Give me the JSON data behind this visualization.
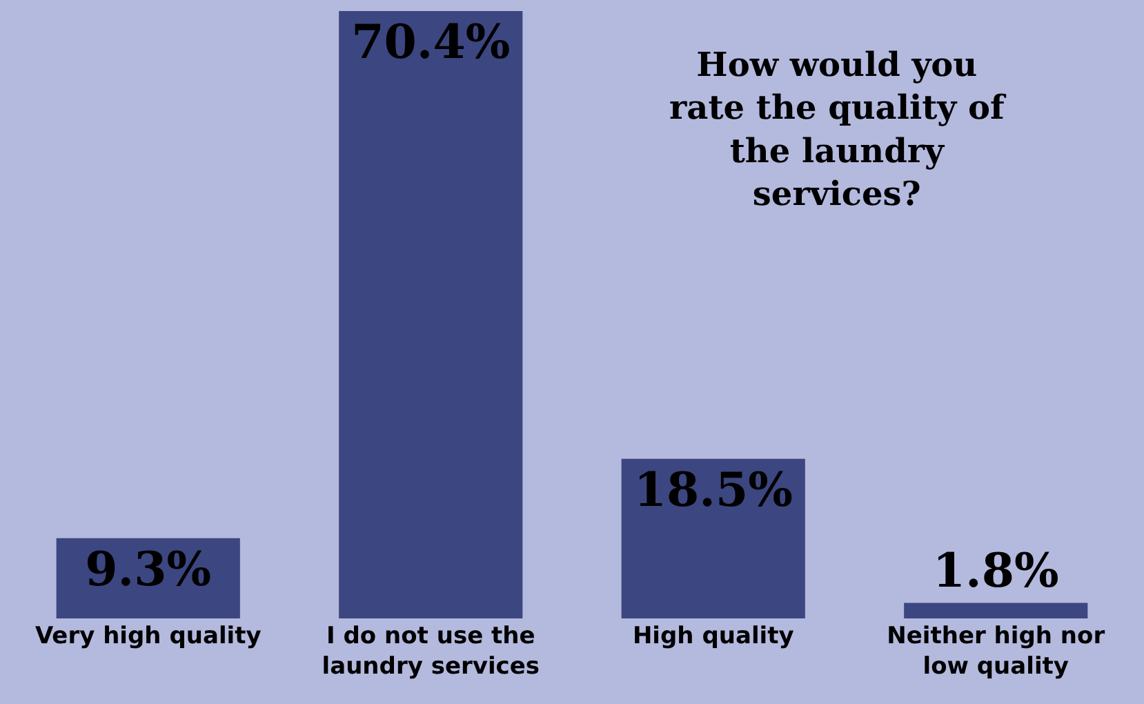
{
  "chart_data": {
    "type": "bar",
    "title": "How would you\nrate the quality of\nthe laundry\nservices?",
    "categories": [
      "Very high quality",
      "I do not use the\nlaundry services",
      "High quality",
      "Neither high nor\nlow quality"
    ],
    "values": [
      9.3,
      70.4,
      18.5,
      1.8
    ],
    "value_labels": [
      "9.3%",
      "70.4%",
      "18.5%",
      "1.8%"
    ],
    "color": "#3c4680",
    "grid": false,
    "legend": false
  }
}
